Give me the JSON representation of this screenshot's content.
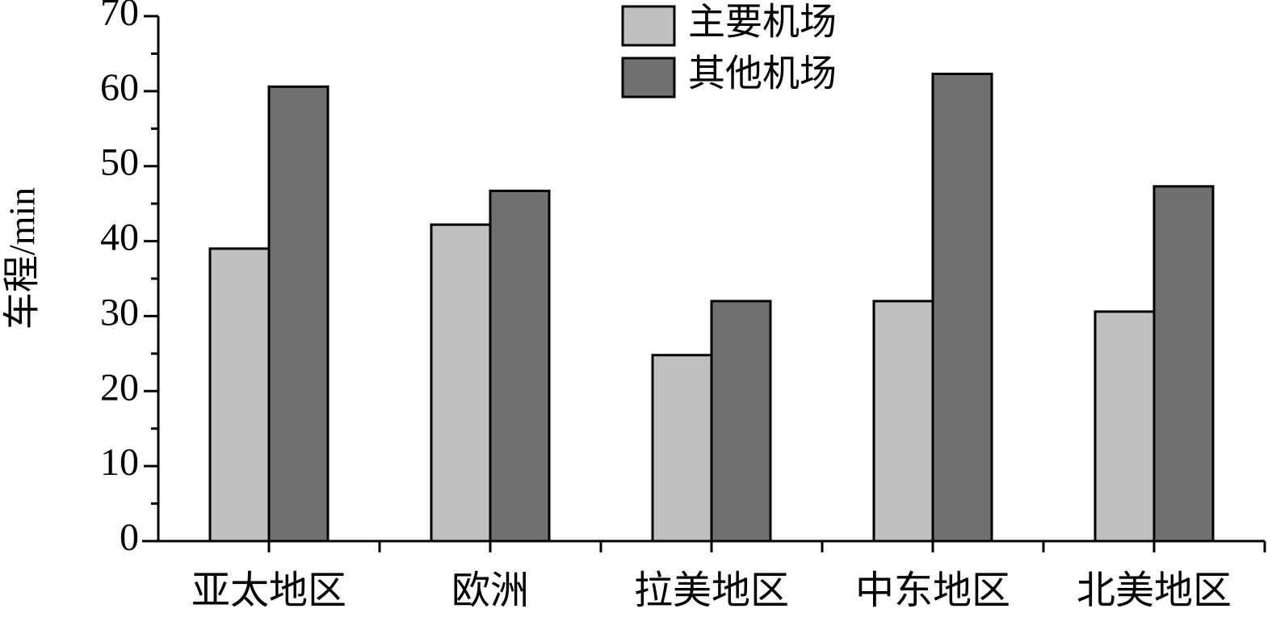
{
  "chart_data": {
    "type": "bar",
    "y_label": "车程/min",
    "categories": [
      "亚太地区",
      "欧洲",
      "拉美地区",
      "中东地区",
      "北美地区"
    ],
    "series": [
      {
        "name": "主要机场",
        "color": "#c0c0c0",
        "values": [
          39,
          42.2,
          24.8,
          32,
          30.6
        ]
      },
      {
        "name": "其他机场",
        "color": "#707070",
        "values": [
          60.6,
          46.7,
          32,
          62.3,
          47.3
        ]
      }
    ],
    "ylim": [
      0,
      70
    ],
    "yticks": [
      0,
      10,
      20,
      30,
      40,
      50,
      60,
      70
    ],
    "yminorticks": [
      5,
      15,
      25,
      35,
      45,
      55,
      65
    ],
    "legend": "top"
  }
}
